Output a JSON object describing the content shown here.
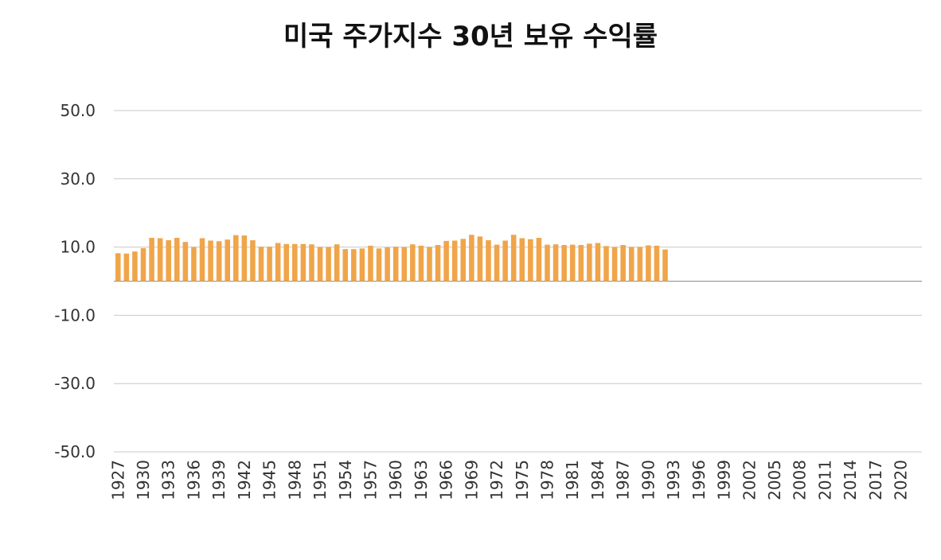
{
  "chart_data": {
    "type": "bar",
    "title": "미국 주가지수 30년 보유 수익률",
    "xlabel": "",
    "ylabel": "",
    "ylim": [
      -50,
      50
    ],
    "yticks": [
      "50.0",
      "30.0",
      "10.0",
      "-10.0",
      "-30.0",
      "-50.0"
    ],
    "ytick_values": [
      50,
      30,
      10,
      -10,
      -30,
      -50
    ],
    "xtick_labels": [
      "1927",
      "1930",
      "1933",
      "1936",
      "1939",
      "1942",
      "1945",
      "1948",
      "1951",
      "1954",
      "1957",
      "1960",
      "1963",
      "1966",
      "1969",
      "1972",
      "1975",
      "1978",
      "1981",
      "1984",
      "1987",
      "1990",
      "1993",
      "1996",
      "1999",
      "2002",
      "2005",
      "2008",
      "2011",
      "2014",
      "2017",
      "2020"
    ],
    "year_start": 1927,
    "year_end": 2022,
    "grid": true,
    "bar_color": "#F0A54A",
    "series": [
      {
        "values": [
          8.2,
          8.1,
          8.7,
          9.7,
          12.7,
          12.6,
          12.0,
          12.7,
          11.5,
          10.0,
          12.6,
          11.9,
          11.7,
          12.2,
          13.5,
          13.4,
          12.0,
          10.1,
          10.1,
          11.2,
          10.9,
          10.9,
          10.9,
          10.8,
          10.0,
          10.0,
          10.8,
          9.4,
          9.4,
          9.6,
          10.4,
          9.6,
          9.9,
          10.1,
          10.0,
          10.8,
          10.4,
          10.0,
          10.6,
          11.8,
          11.9,
          12.4,
          13.6,
          13.1,
          12.0,
          10.7,
          11.9,
          13.6,
          12.6,
          12.3,
          12.7,
          10.7,
          10.8,
          10.6,
          10.7,
          10.6,
          11.0,
          11.2,
          10.3,
          10.0,
          10.6,
          10.0,
          10.0,
          10.5,
          10.4,
          9.3
        ]
      }
    ]
  }
}
